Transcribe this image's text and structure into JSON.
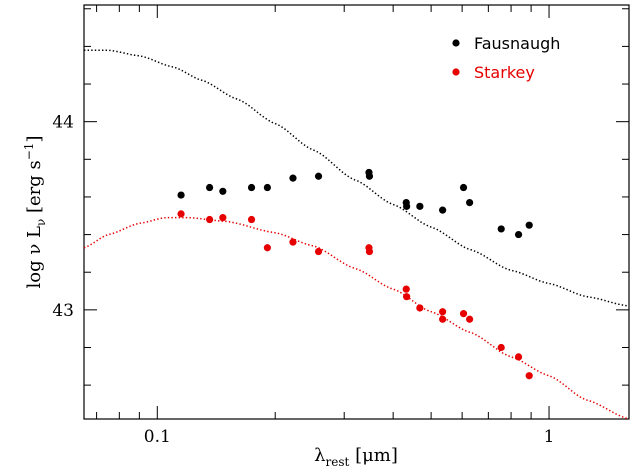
{
  "chart_data": {
    "type": "scatter",
    "x_axis": {
      "label_main": "λ",
      "label_sub": "rest",
      "label_unit": " [μm]",
      "scale": "log",
      "range": [
        0.065,
        1.6
      ],
      "major_ticks": [
        0.1,
        1
      ],
      "major_tick_labels": [
        "0.1",
        "1"
      ]
    },
    "y_axis": {
      "label_pre": "log ν L",
      "label_sub": "ν",
      "label_post": " [erg s",
      "label_sup": "−1",
      "label_close": "]",
      "range": [
        42.42,
        44.62
      ],
      "major_ticks": [
        43,
        44
      ],
      "major_tick_labels": [
        "43",
        "44"
      ]
    },
    "legend": {
      "placement": "top-right"
    },
    "series": [
      {
        "name": "Fausnaugh",
        "color": "#000000",
        "points": [
          [
            0.115,
            43.61
          ],
          [
            0.136,
            43.65
          ],
          [
            0.147,
            43.63
          ],
          [
            0.174,
            43.65
          ],
          [
            0.191,
            43.65
          ],
          [
            0.222,
            43.7
          ],
          [
            0.258,
            43.71
          ],
          [
            0.347,
            43.73
          ],
          [
            0.348,
            43.71
          ],
          [
            0.432,
            43.57
          ],
          [
            0.433,
            43.55
          ],
          [
            0.468,
            43.55
          ],
          [
            0.535,
            43.53
          ],
          [
            0.605,
            43.65
          ],
          [
            0.627,
            43.57
          ],
          [
            0.755,
            43.43
          ],
          [
            0.836,
            43.4
          ],
          [
            0.89,
            43.45
          ]
        ]
      },
      {
        "name": "Starkey",
        "color": "#e60000",
        "points": [
          [
            0.115,
            43.51
          ],
          [
            0.136,
            43.48
          ],
          [
            0.147,
            43.49
          ],
          [
            0.174,
            43.48
          ],
          [
            0.191,
            43.33
          ],
          [
            0.222,
            43.36
          ],
          [
            0.258,
            43.31
          ],
          [
            0.347,
            43.33
          ],
          [
            0.348,
            43.31
          ],
          [
            0.432,
            43.11
          ],
          [
            0.433,
            43.07
          ],
          [
            0.468,
            43.01
          ],
          [
            0.535,
            42.99
          ],
          [
            0.535,
            42.95
          ],
          [
            0.605,
            42.98
          ],
          [
            0.627,
            42.95
          ],
          [
            0.755,
            42.8
          ],
          [
            0.836,
            42.75
          ],
          [
            0.89,
            42.65
          ]
        ]
      }
    ],
    "curves": [
      {
        "style": "dotted",
        "color": "#000000",
        "points": [
          [
            0.065,
            44.38
          ],
          [
            0.075,
            44.38
          ],
          [
            0.09,
            44.35
          ],
          [
            0.11,
            44.29
          ],
          [
            0.13,
            44.22
          ],
          [
            0.16,
            44.12
          ],
          [
            0.2,
            43.99
          ],
          [
            0.25,
            43.85
          ],
          [
            0.32,
            43.69
          ],
          [
            0.4,
            43.56
          ],
          [
            0.5,
            43.44
          ],
          [
            0.63,
            43.32
          ],
          [
            0.8,
            43.21
          ],
          [
            1.0,
            43.14
          ],
          [
            1.25,
            43.07
          ],
          [
            1.6,
            43.02
          ]
        ]
      },
      {
        "style": "dotted",
        "color": "#e60000",
        "points": [
          [
            0.065,
            43.33
          ],
          [
            0.075,
            43.4
          ],
          [
            0.09,
            43.46
          ],
          [
            0.105,
            43.49
          ],
          [
            0.12,
            43.49
          ],
          [
            0.15,
            43.47
          ],
          [
            0.2,
            43.41
          ],
          [
            0.25,
            43.34
          ],
          [
            0.32,
            43.22
          ],
          [
            0.4,
            43.11
          ],
          [
            0.5,
            42.99
          ],
          [
            0.63,
            42.88
          ],
          [
            0.8,
            42.75
          ],
          [
            1.0,
            42.65
          ],
          [
            1.25,
            42.52
          ],
          [
            1.6,
            42.42
          ]
        ]
      }
    ]
  }
}
